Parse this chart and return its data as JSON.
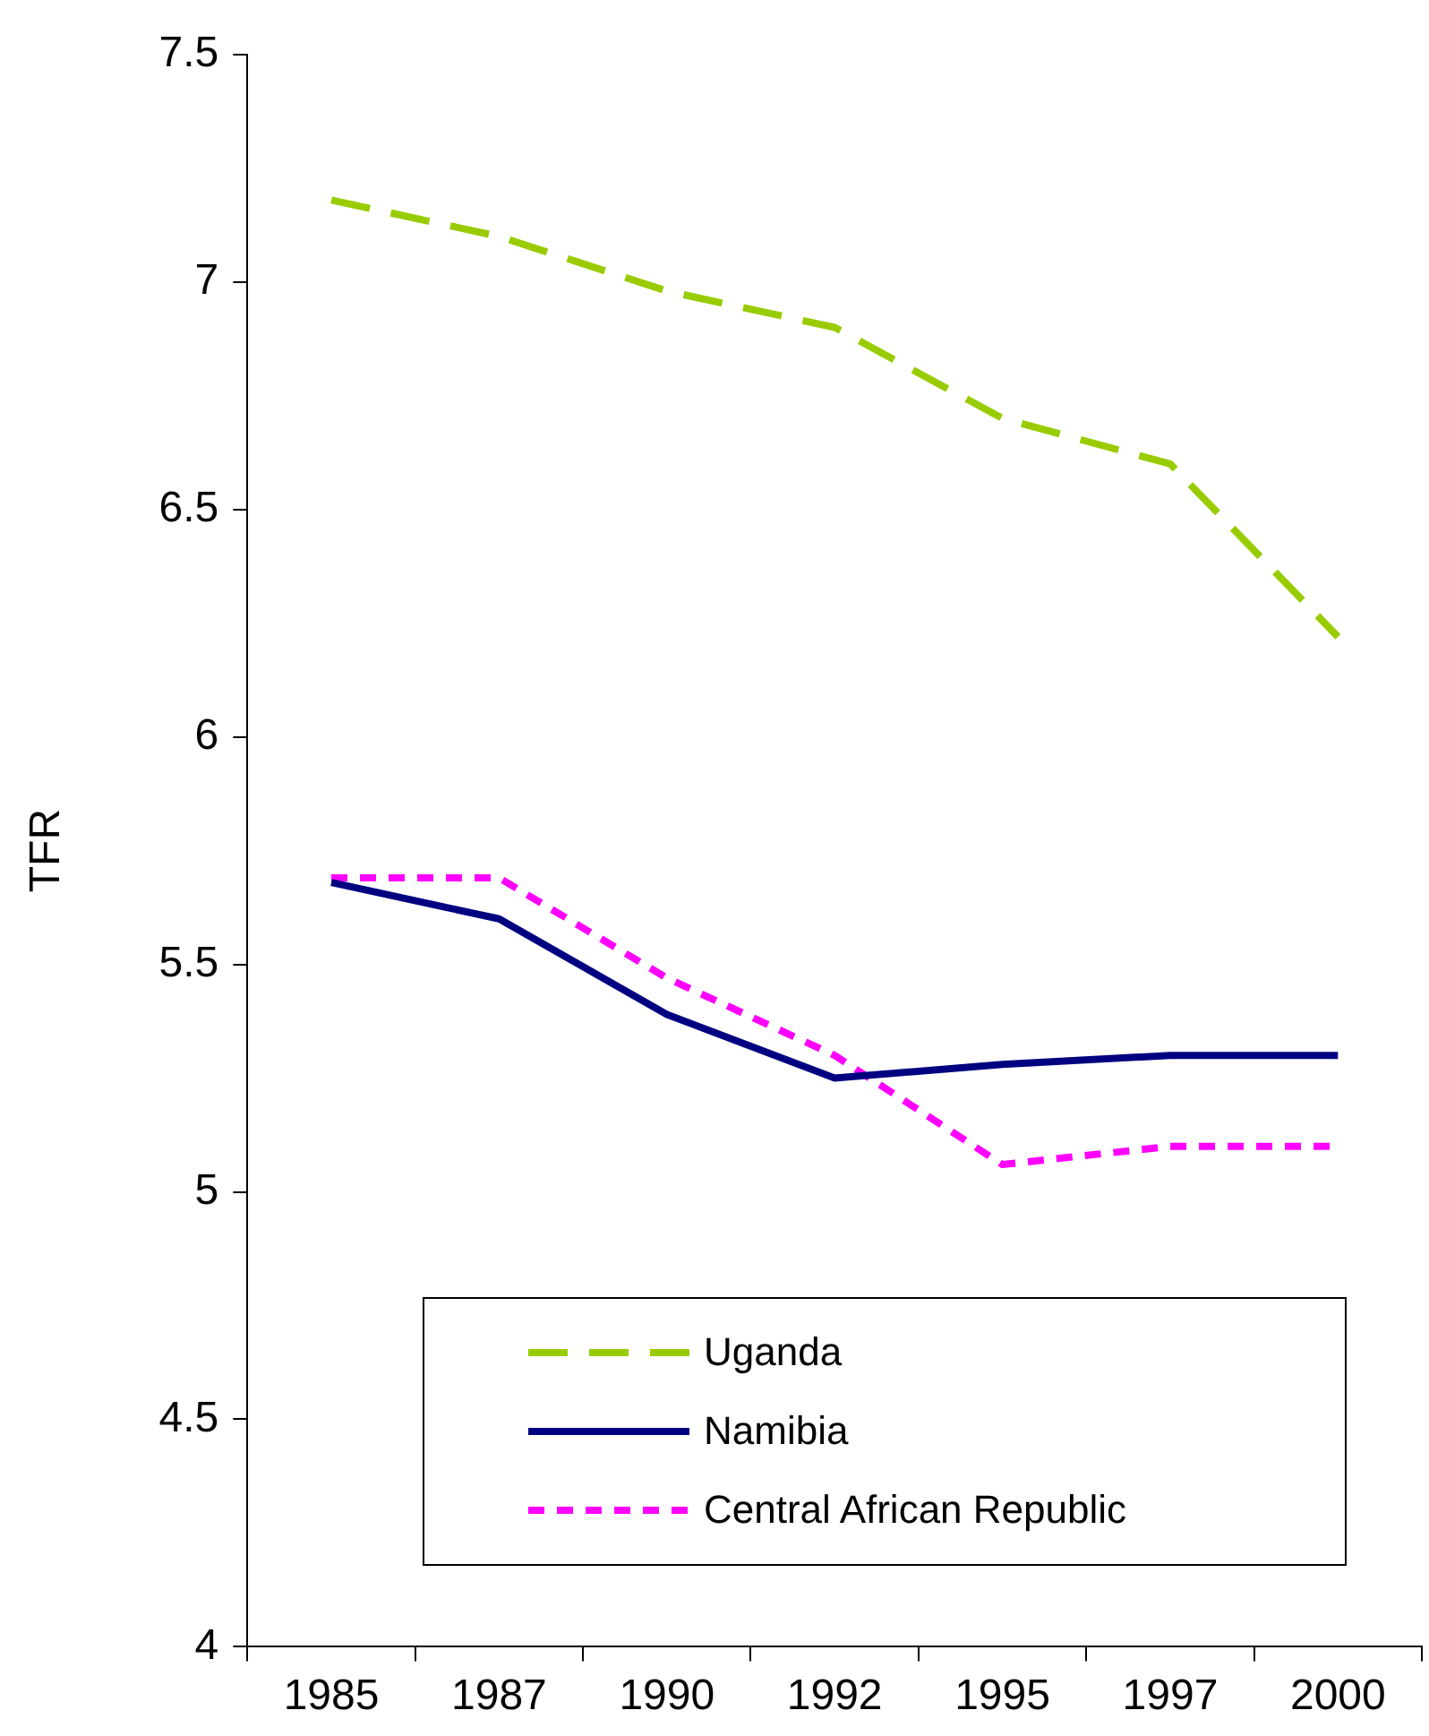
{
  "chart_data": {
    "type": "line",
    "ylabel": "TFR",
    "categories": [
      "1985",
      "1987",
      "1990",
      "1992",
      "1995",
      "1997",
      "2000"
    ],
    "ylim": [
      4,
      7.5
    ],
    "yticks": [
      4,
      4.5,
      5,
      5.5,
      6,
      6.5,
      7,
      7.5
    ],
    "grid": false,
    "legend": "bottom",
    "marker": "none",
    "series": [
      {
        "name": "Uganda",
        "color": "#99cc00",
        "line_style": "dashed",
        "values": [
          7.18,
          7.1,
          6.98,
          6.9,
          6.7,
          6.6,
          6.22
        ]
      },
      {
        "name": "Namibia",
        "color": "#000080",
        "line_style": "solid",
        "values": [
          5.68,
          5.6,
          5.39,
          5.25,
          5.28,
          5.3,
          5.3
        ]
      },
      {
        "name": "Central African Republic",
        "color": "#ff00ff",
        "line_style": "dotted",
        "values": [
          5.69,
          5.69,
          5.47,
          5.3,
          5.06,
          5.1,
          5.1
        ]
      }
    ]
  }
}
